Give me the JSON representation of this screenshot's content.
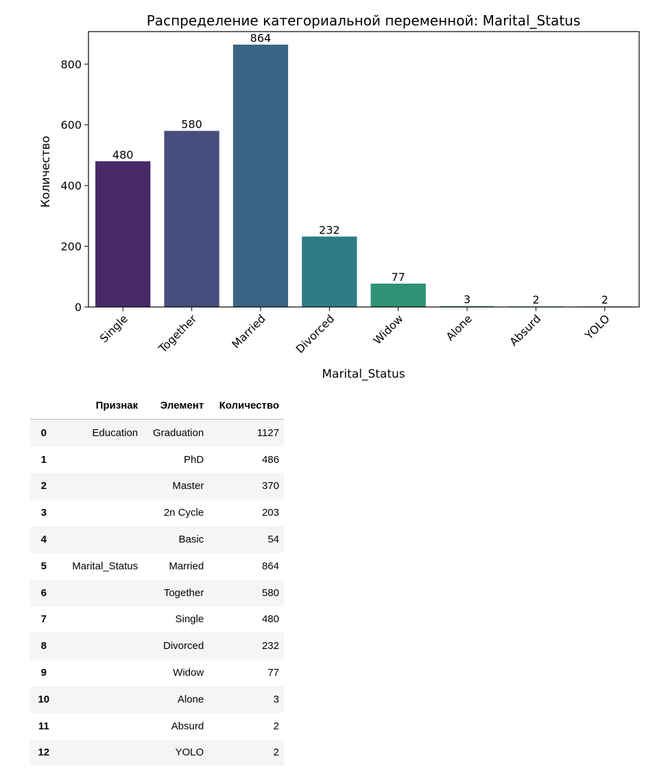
{
  "chart_data": {
    "type": "bar",
    "title": "Распределение категориальной переменной: Marital_Status",
    "xlabel": "Marital_Status",
    "ylabel": "Количество",
    "categories": [
      "Single",
      "Together",
      "Married",
      "Divorced",
      "Widow",
      "Alone",
      "Absurd",
      "YOLO"
    ],
    "values": [
      480,
      580,
      864,
      232,
      77,
      3,
      2,
      2
    ],
    "data_labels": [
      "480",
      "580",
      "864",
      "232",
      "77",
      "3",
      "2",
      "2"
    ],
    "ylim": [
      0,
      907
    ],
    "yticks": [
      0,
      200,
      400,
      600,
      800
    ],
    "ytick_labels": [
      "0",
      "200",
      "400",
      "600",
      "800"
    ],
    "colors": [
      "#482a6b",
      "#474d7c",
      "#3a6484",
      "#2e7b87",
      "#2e9276",
      "#37a461",
      "#43b056",
      "#5fb843"
    ],
    "grid": false,
    "legend": "none"
  },
  "table": {
    "columns": [
      "",
      "Признак",
      "Элемент",
      "Количество"
    ],
    "rows": [
      {
        "index": "0",
        "feature": "Education",
        "element": "Graduation",
        "count": "1127"
      },
      {
        "index": "1",
        "feature": "",
        "element": "PhD",
        "count": "486"
      },
      {
        "index": "2",
        "feature": "",
        "element": "Master",
        "count": "370"
      },
      {
        "index": "3",
        "feature": "",
        "element": "2n Cycle",
        "count": "203"
      },
      {
        "index": "4",
        "feature": "",
        "element": "Basic",
        "count": "54"
      },
      {
        "index": "5",
        "feature": "Marital_Status",
        "element": "Married",
        "count": "864"
      },
      {
        "index": "6",
        "feature": "",
        "element": "Together",
        "count": "580"
      },
      {
        "index": "7",
        "feature": "",
        "element": "Single",
        "count": "480"
      },
      {
        "index": "8",
        "feature": "",
        "element": "Divorced",
        "count": "232"
      },
      {
        "index": "9",
        "feature": "",
        "element": "Widow",
        "count": "77"
      },
      {
        "index": "10",
        "feature": "",
        "element": "Alone",
        "count": "3"
      },
      {
        "index": "11",
        "feature": "",
        "element": "Absurd",
        "count": "2"
      },
      {
        "index": "12",
        "feature": "",
        "element": "YOLO",
        "count": "2"
      }
    ]
  }
}
